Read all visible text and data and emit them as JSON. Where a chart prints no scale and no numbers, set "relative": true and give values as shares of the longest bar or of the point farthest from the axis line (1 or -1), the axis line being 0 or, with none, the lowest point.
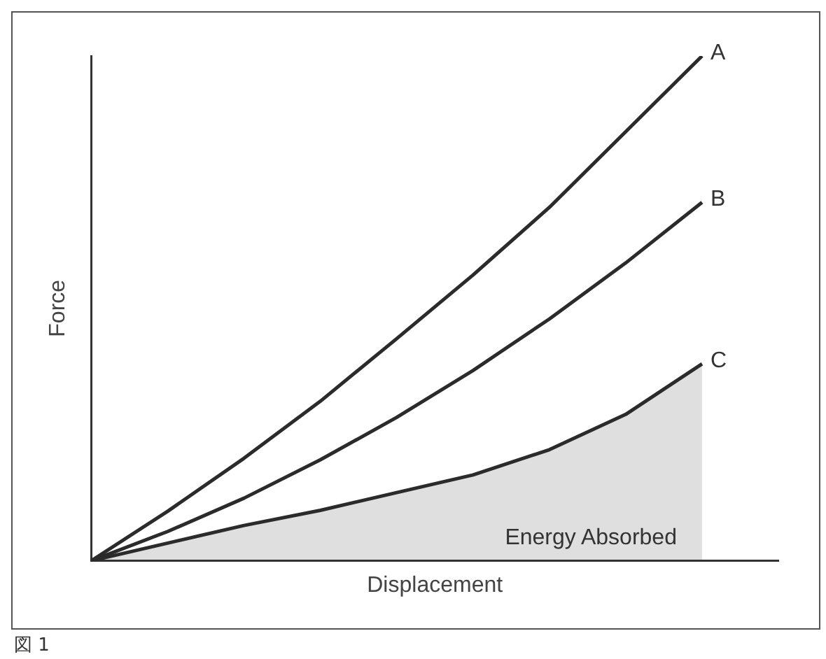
{
  "chart_data": {
    "type": "line",
    "relative": true,
    "xlabel": "Displacement",
    "ylabel": "Force",
    "grid": false,
    "legend": false,
    "marker": "none",
    "categories": [
      null,
      null,
      null,
      null,
      null,
      null,
      null,
      null,
      null,
      null
    ],
    "series": [
      {
        "name": "A",
        "color": "#2b2b2b",
        "values": [
          0,
          0.098,
          0.203,
          0.316,
          0.44,
          0.566,
          0.7,
          0.85,
          1,
          null
        ]
      },
      {
        "name": "B",
        "color": "#2b2b2b",
        "values": [
          0,
          0.058,
          0.124,
          0.2,
          0.284,
          0.377,
          0.479,
          0.59,
          0.71,
          null
        ]
      },
      {
        "name": "C",
        "type": "area",
        "color": "#2b2b2b",
        "values": [
          0,
          0.035,
          0.07,
          0.1,
          0.135,
          0.17,
          0.22,
          0.29,
          0.39,
          null
        ]
      }
    ],
    "annotations": [
      "Energy Absorbed",
      "図 1"
    ]
  }
}
